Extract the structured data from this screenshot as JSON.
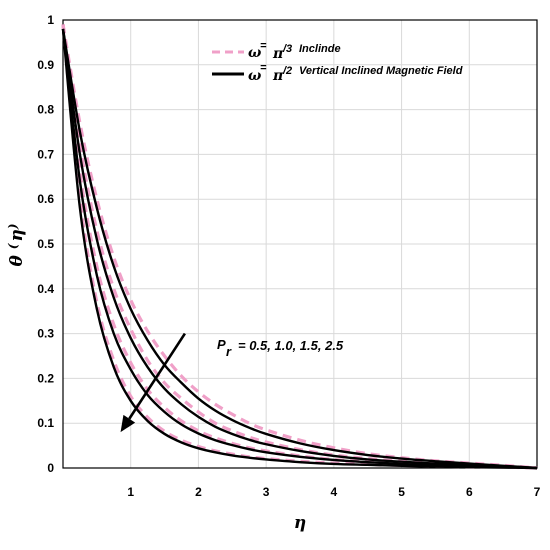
{
  "chart_data": {
    "type": "line",
    "xlabel": "η",
    "ylabel": "θ(η)",
    "ylabel_main": "θ",
    "ylabel_paren_open": "(",
    "ylabel_eta": "η",
    "ylabel_paren_close": ")",
    "xlim": [
      0,
      7
    ],
    "ylim": [
      0,
      1
    ],
    "x_ticks": [
      1,
      2,
      3,
      4,
      5,
      6,
      7
    ],
    "x_tick_labels": [
      "1",
      "2",
      "3",
      "4",
      "5",
      "6",
      "7"
    ],
    "y_ticks": [
      0,
      0.1,
      0.2,
      0.3,
      0.4,
      0.5,
      0.6,
      0.7,
      0.8,
      0.9,
      1
    ],
    "y_tick_labels": [
      "0",
      "0.1",
      "0.2",
      "0.3",
      "0.4",
      "0.5",
      "0.6",
      "0.7",
      "0.8",
      "0.9",
      "1"
    ],
    "grid": true,
    "legend_position": "top-right",
    "legend": [
      {
        "symbol": "ω",
        "equals": "=",
        "value": "π",
        "fraction": "/3",
        "label": "Inclinde",
        "style": "dashed",
        "color": "#f0a0c8"
      },
      {
        "symbol": "ω",
        "equals": "=",
        "value": "π",
        "fraction": "/2",
        "label": "Vertical Inclined Magnetic Field",
        "style": "solid",
        "color": "#000000"
      }
    ],
    "annotation": {
      "symbol": "P",
      "subscript": "r",
      "text": "= 0.5, 1.0, 1.5, 2.5",
      "arrow_from": [
        1.8,
        0.3
      ],
      "arrow_to": [
        0.85,
        0.08
      ]
    },
    "x": [
      0,
      0.25,
      0.5,
      0.75,
      1,
      1.25,
      1.5,
      1.75,
      2,
      2.25,
      2.5,
      2.75,
      3,
      3.5,
      4,
      4.5,
      5,
      5.5,
      6,
      6.5,
      7
    ],
    "series": [
      {
        "style": "dashed",
        "color": "#f0a0c8",
        "values": [
          0.99,
          0.77,
          0.6,
          0.47,
          0.375,
          0.305,
          0.25,
          0.205,
          0.17,
          0.142,
          0.12,
          0.1,
          0.085,
          0.062,
          0.045,
          0.032,
          0.023,
          0.016,
          0.011,
          0.006,
          0.0
        ]
      },
      {
        "style": "dashed",
        "color": "#f0a0c8",
        "values": [
          0.99,
          0.72,
          0.53,
          0.4,
          0.31,
          0.24,
          0.19,
          0.155,
          0.125,
          0.1,
          0.083,
          0.069,
          0.058,
          0.041,
          0.029,
          0.021,
          0.015,
          0.01,
          0.007,
          0.004,
          0.0
        ]
      },
      {
        "style": "dashed",
        "color": "#f0a0c8",
        "values": [
          0.99,
          0.66,
          0.45,
          0.32,
          0.235,
          0.175,
          0.135,
          0.105,
          0.083,
          0.067,
          0.055,
          0.045,
          0.038,
          0.027,
          0.019,
          0.014,
          0.01,
          0.007,
          0.005,
          0.003,
          0.0
        ]
      },
      {
        "style": "dashed",
        "color": "#f0a0c8",
        "values": [
          0.99,
          0.6,
          0.37,
          0.24,
          0.16,
          0.113,
          0.082,
          0.062,
          0.048,
          0.038,
          0.031,
          0.025,
          0.021,
          0.015,
          0.011,
          0.008,
          0.006,
          0.004,
          0.003,
          0.002,
          0.0
        ]
      },
      {
        "style": "solid",
        "color": "#000000",
        "values": [
          0.98,
          0.75,
          0.58,
          0.45,
          0.355,
          0.285,
          0.23,
          0.19,
          0.155,
          0.128,
          0.107,
          0.09,
          0.076,
          0.055,
          0.04,
          0.029,
          0.021,
          0.015,
          0.01,
          0.005,
          0.0
        ]
      },
      {
        "style": "solid",
        "color": "#000000",
        "values": [
          0.98,
          0.7,
          0.51,
          0.38,
          0.29,
          0.225,
          0.177,
          0.142,
          0.114,
          0.092,
          0.076,
          0.063,
          0.053,
          0.038,
          0.027,
          0.019,
          0.014,
          0.01,
          0.007,
          0.004,
          0.0
        ]
      },
      {
        "style": "solid",
        "color": "#000000",
        "values": [
          0.98,
          0.64,
          0.43,
          0.3,
          0.22,
          0.163,
          0.125,
          0.097,
          0.077,
          0.062,
          0.051,
          0.042,
          0.035,
          0.025,
          0.018,
          0.013,
          0.009,
          0.006,
          0.004,
          0.002,
          0.0
        ]
      },
      {
        "style": "solid",
        "color": "#000000",
        "values": [
          0.98,
          0.58,
          0.355,
          0.225,
          0.15,
          0.105,
          0.076,
          0.057,
          0.044,
          0.035,
          0.028,
          0.023,
          0.019,
          0.013,
          0.009,
          0.007,
          0.005,
          0.003,
          0.002,
          0.001,
          0.0
        ]
      }
    ]
  }
}
